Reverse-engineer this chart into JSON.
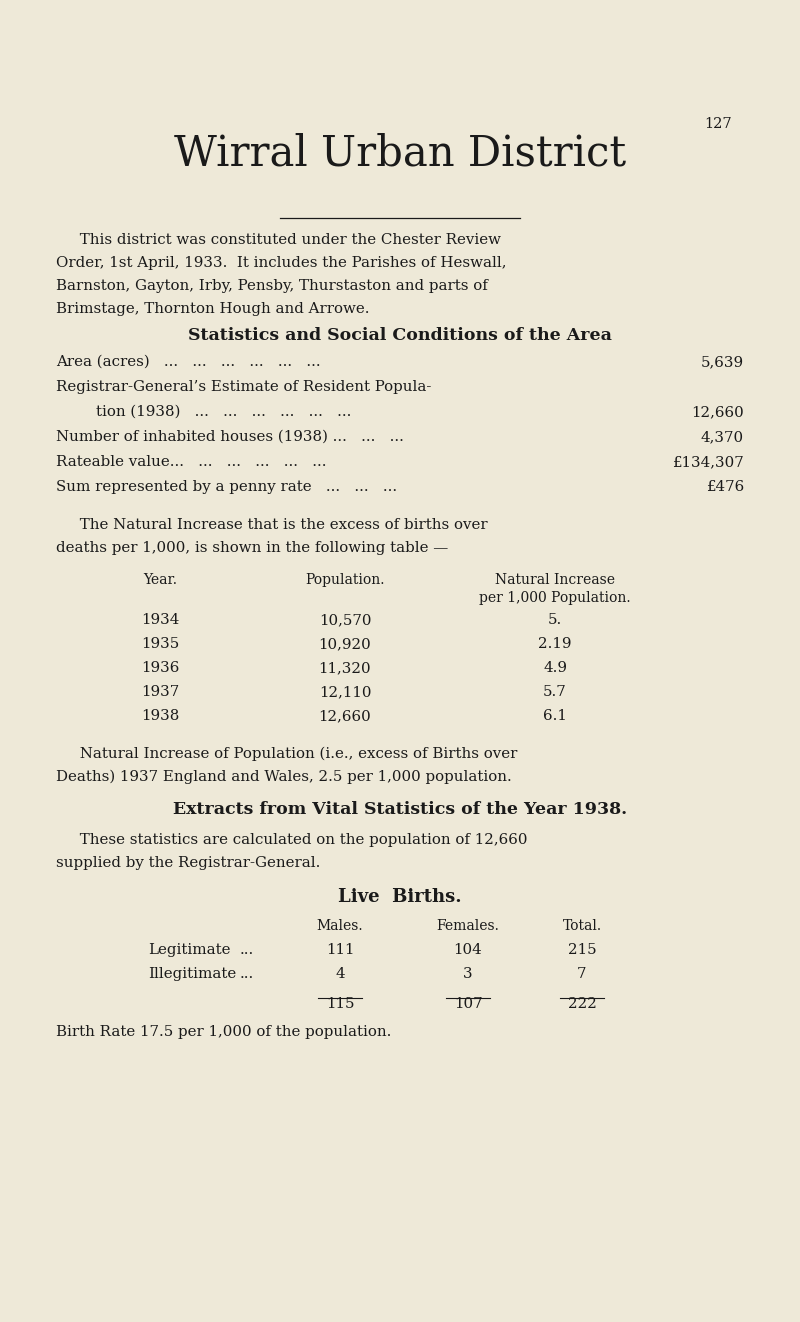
{
  "bg_color": "#eee9d8",
  "text_color": "#1a1a1a",
  "page_number": "127",
  "title": "Wirral Urban District",
  "section_title": "Statistics and Social Conditions of the Area",
  "ni_table_data": [
    [
      "1934",
      "10,570",
      "5."
    ],
    [
      "1935",
      "10,920",
      "2.19"
    ],
    [
      "1936",
      "11,320",
      "4.9"
    ],
    [
      "1937",
      "12,110",
      "5.7"
    ],
    [
      "1938",
      "12,660",
      "6.1"
    ]
  ],
  "extracts_title": "Extracts from Vital Statistics of the Year 1938.",
  "live_births_title": "Live  Births.",
  "birth_rate_note": "Birth Rate 17.5 per 1,000 of the population."
}
